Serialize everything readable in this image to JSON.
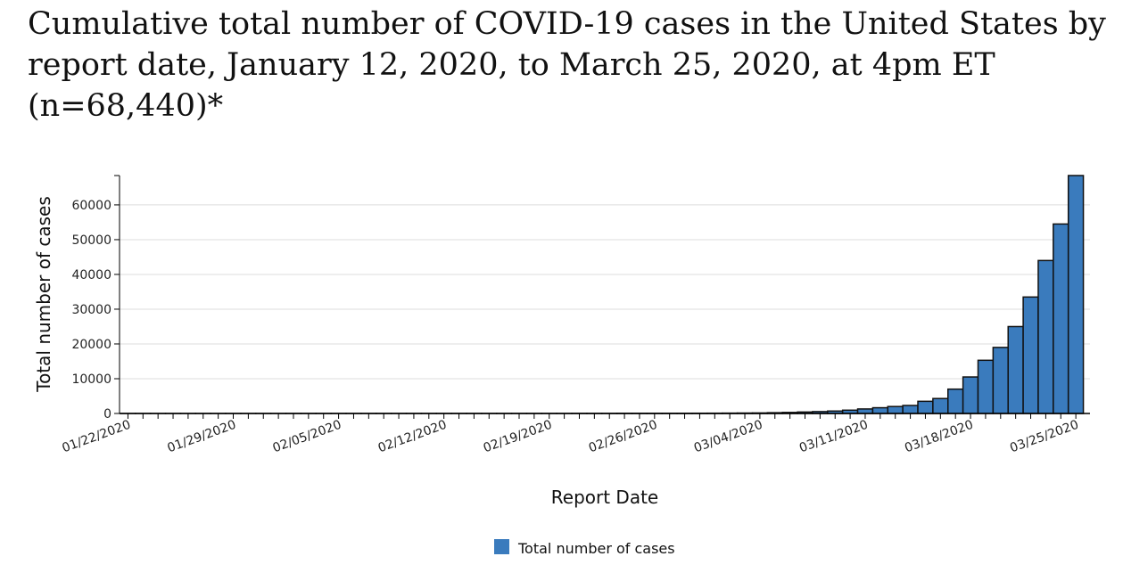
{
  "title": "Cumulative total number of COVID-19 cases in the United States by report date, January 12, 2020, to March 25, 2020, at 4pm ET (n=68,440)*",
  "colors": {
    "bar_fill": "#3a7bbd",
    "bar_stroke": "#111111",
    "grid": "#dddddd",
    "axis": "#000000"
  },
  "chart_data": {
    "type": "bar",
    "xlabel": "Report Date",
    "ylabel": "Total number of cases",
    "ylim": [
      0,
      68440
    ],
    "yticks": [
      0,
      10000,
      20000,
      30000,
      40000,
      50000,
      60000
    ],
    "grid": true,
    "legend": {
      "position": "bottom-center"
    },
    "xtick_labels": [
      "01/22/2020",
      "01/29/2020",
      "02/05/2020",
      "02/12/2020",
      "02/19/2020",
      "02/26/2020",
      "03/04/2020",
      "03/11/2020",
      "03/18/2020",
      "03/25/2020"
    ],
    "categories": [
      "01/22/2020",
      "01/23/2020",
      "01/24/2020",
      "01/25/2020",
      "01/26/2020",
      "01/27/2020",
      "01/28/2020",
      "01/29/2020",
      "01/30/2020",
      "01/31/2020",
      "02/01/2020",
      "02/02/2020",
      "02/03/2020",
      "02/04/2020",
      "02/05/2020",
      "02/06/2020",
      "02/07/2020",
      "02/08/2020",
      "02/09/2020",
      "02/10/2020",
      "02/11/2020",
      "02/12/2020",
      "02/13/2020",
      "02/14/2020",
      "02/15/2020",
      "02/16/2020",
      "02/17/2020",
      "02/18/2020",
      "02/19/2020",
      "02/20/2020",
      "02/21/2020",
      "02/22/2020",
      "02/23/2020",
      "02/24/2020",
      "02/25/2020",
      "02/26/2020",
      "02/27/2020",
      "02/28/2020",
      "02/29/2020",
      "03/01/2020",
      "03/02/2020",
      "03/03/2020",
      "03/04/2020",
      "03/05/2020",
      "03/06/2020",
      "03/07/2020",
      "03/08/2020",
      "03/09/2020",
      "03/10/2020",
      "03/11/2020",
      "03/12/2020",
      "03/13/2020",
      "03/14/2020",
      "03/15/2020",
      "03/16/2020",
      "03/17/2020",
      "03/18/2020",
      "03/19/2020",
      "03/20/2020",
      "03/21/2020",
      "03/22/2020",
      "03/23/2020",
      "03/24/2020",
      "03/25/2020"
    ],
    "series": [
      {
        "name": "Total number of cases",
        "values": [
          1,
          1,
          2,
          2,
          5,
          5,
          5,
          5,
          6,
          7,
          8,
          11,
          11,
          11,
          12,
          12,
          12,
          12,
          12,
          13,
          13,
          14,
          15,
          15,
          15,
          15,
          15,
          15,
          15,
          15,
          35,
          35,
          35,
          53,
          53,
          57,
          60,
          62,
          70,
          80,
          100,
          125,
          150,
          220,
          300,
          420,
          540,
          700,
          950,
          1300,
          1650,
          2000,
          2300,
          3500,
          4300,
          7000,
          10500,
          15300,
          19000,
          25000,
          33500,
          44000,
          54500,
          68440
        ]
      }
    ]
  }
}
